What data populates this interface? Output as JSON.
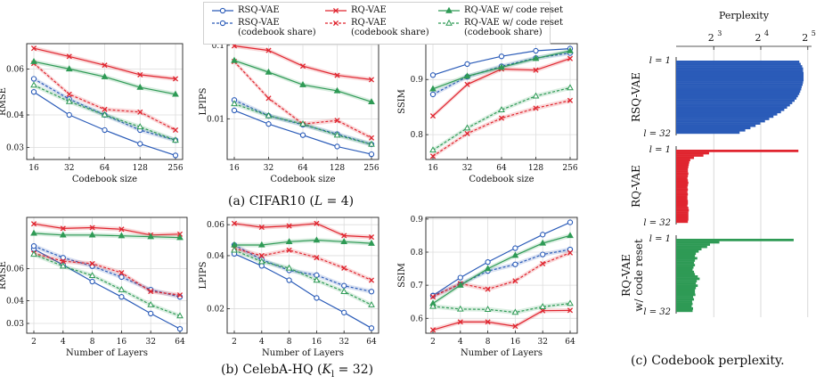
{
  "colors": {
    "rsq": "#2a5bb8",
    "rq": "#e0252f",
    "rqr": "#2e9a55"
  },
  "legend": [
    {
      "key": "rsq",
      "label": "RSQ-VAE",
      "marker": "circle",
      "dashed": false
    },
    {
      "key": "rsq_s",
      "label": "RSQ-VAE\n(codebook share)",
      "marker": "circle",
      "dashed": true
    },
    {
      "key": "rq",
      "label": "RQ-VAE",
      "marker": "x",
      "dashed": false
    },
    {
      "key": "rq_s",
      "label": "RQ-VAE\n(codebook share)",
      "marker": "x",
      "dashed": true
    },
    {
      "key": "rqr",
      "label": "RQ-VAE w/ code reset",
      "marker": "triangle",
      "dashed": false
    },
    {
      "key": "rqr_s",
      "label": "RQ-VAE w/ code reset\n(codebook share)",
      "marker": "triangle",
      "dashed": true
    }
  ],
  "captions": {
    "a": "(a) CIFAR10 (L = 4)",
    "b": "(b) CelebA-HQ (Kl = 32)",
    "c": "(c) Codebook perplexity."
  },
  "chart_data": [
    {
      "id": "cifar-rmse",
      "type": "line",
      "ylabel": "RMSE",
      "xlabel": "Codebook size",
      "x": [
        "16",
        "32",
        "64",
        "128",
        "256"
      ],
      "ylog": true,
      "ylim": [
        0.027,
        0.075
      ],
      "yticks": [
        {
          "v": 0.03,
          "t": "0.03"
        },
        {
          "v": 0.04,
          "t": "0.04"
        },
        {
          "v": 0.06,
          "t": "0.06"
        }
      ],
      "series": [
        {
          "key": "rsq",
          "values": [
            0.049,
            0.04,
            0.035,
            0.031,
            0.028
          ]
        },
        {
          "key": "rsq_s",
          "values": [
            0.055,
            0.046,
            0.04,
            0.035,
            0.032
          ]
        },
        {
          "key": "rq",
          "values": [
            0.072,
            0.067,
            0.062,
            0.057,
            0.055
          ]
        },
        {
          "key": "rq_s",
          "values": [
            0.063,
            0.048,
            0.042,
            0.041,
            0.035
          ]
        },
        {
          "key": "rqr",
          "values": [
            0.064,
            0.06,
            0.056,
            0.051,
            0.048
          ]
        },
        {
          "key": "rqr_s",
          "values": [
            0.052,
            0.045,
            0.04,
            0.036,
            0.032
          ]
        }
      ]
    },
    {
      "id": "cifar-lpips",
      "type": "line",
      "ylabel": "LPIPS",
      "xlabel": "Codebook size",
      "x": [
        "16",
        "32",
        "64",
        "128",
        "256"
      ],
      "ylog": true,
      "ylim": [
        0.0028,
        0.105
      ],
      "yticks": [
        {
          "v": 0.01,
          "t": "0.01"
        },
        {
          "v": 0.1,
          "t": "0.1"
        }
      ],
      "series": [
        {
          "key": "rsq",
          "values": [
            0.013,
            0.0085,
            0.006,
            0.0042,
            0.0033
          ]
        },
        {
          "key": "rsq_s",
          "values": [
            0.018,
            0.011,
            0.0083,
            0.0062,
            0.0045
          ]
        },
        {
          "key": "rq",
          "values": [
            0.098,
            0.085,
            0.052,
            0.039,
            0.034
          ]
        },
        {
          "key": "rq_s",
          "values": [
            0.06,
            0.019,
            0.0085,
            0.0095,
            0.0055
          ]
        },
        {
          "key": "rqr",
          "values": [
            0.062,
            0.043,
            0.029,
            0.024,
            0.017
          ]
        },
        {
          "key": "rqr_s",
          "values": [
            0.016,
            0.011,
            0.0085,
            0.006,
            0.0045
          ]
        }
      ]
    },
    {
      "id": "cifar-ssim",
      "type": "line",
      "ylabel": "SSIM",
      "xlabel": "Codebook size",
      "x": [
        "16",
        "32",
        "64",
        "128",
        "256"
      ],
      "ylog": false,
      "ylim": [
        0.755,
        0.965
      ],
      "yticks": [
        {
          "v": 0.8,
          "t": "0.8"
        },
        {
          "v": 0.9,
          "t": "0.9"
        }
      ],
      "series": [
        {
          "key": "rsq",
          "values": [
            0.908,
            0.928,
            0.942,
            0.952,
            0.956
          ]
        },
        {
          "key": "rsq_s",
          "values": [
            0.873,
            0.905,
            0.924,
            0.939,
            0.948
          ]
        },
        {
          "key": "rq",
          "values": [
            0.834,
            0.891,
            0.919,
            0.917,
            0.938
          ]
        },
        {
          "key": "rq_s",
          "values": [
            0.761,
            0.802,
            0.83,
            0.848,
            0.862
          ]
        },
        {
          "key": "rqr",
          "values": [
            0.883,
            0.906,
            0.922,
            0.938,
            0.952
          ]
        },
        {
          "key": "rqr_s",
          "values": [
            0.772,
            0.812,
            0.845,
            0.87,
            0.885
          ]
        }
      ]
    },
    {
      "id": "celeba-rmse",
      "type": "line",
      "ylabel": "RMSE",
      "xlabel": "Number of Layers",
      "x": [
        "2",
        "4",
        "8",
        "16",
        "32",
        "64"
      ],
      "ylog": true,
      "ylim": [
        0.0265,
        0.115
      ],
      "yticks": [
        {
          "v": 0.03,
          "t": "0.03"
        },
        {
          "v": 0.04,
          "t": "0.04"
        },
        {
          "v": 0.06,
          "t": "0.06"
        }
      ],
      "series": [
        {
          "key": "rsq",
          "values": [
            0.077,
            0.063,
            0.051,
            0.042,
            0.034,
            0.028
          ]
        },
        {
          "key": "rsq_s",
          "values": [
            0.08,
            0.069,
            0.062,
            0.054,
            0.046,
            0.042
          ]
        },
        {
          "key": "rq",
          "values": [
            0.106,
            0.1,
            0.101,
            0.099,
            0.092,
            0.093
          ]
        },
        {
          "key": "rq_s",
          "values": [
            0.073,
            0.066,
            0.064,
            0.057,
            0.045,
            0.043
          ]
        },
        {
          "key": "rqr",
          "values": [
            0.094,
            0.092,
            0.092,
            0.091,
            0.09,
            0.089
          ]
        },
        {
          "key": "rqr_s",
          "values": [
            0.072,
            0.062,
            0.055,
            0.046,
            0.038,
            0.033
          ]
        }
      ]
    },
    {
      "id": "celeba-lpips",
      "type": "line",
      "ylabel": "LPIPS",
      "xlabel": "Number of Layers",
      "x": [
        "2",
        "4",
        "8",
        "16",
        "32",
        "64"
      ],
      "ylog": true,
      "ylim": [
        0.0145,
        0.066
      ],
      "yticks": [
        {
          "v": 0.02,
          "t": "0.02"
        },
        {
          "v": 0.04,
          "t": "0.04"
        },
        {
          "v": 0.06,
          "t": "0.06"
        }
      ],
      "series": [
        {
          "key": "rsq",
          "values": [
            0.041,
            0.035,
            0.029,
            0.023,
            0.019,
            0.0155
          ]
        },
        {
          "key": "rsq_s",
          "values": [
            0.046,
            0.038,
            0.033,
            0.031,
            0.027,
            0.025
          ]
        },
        {
          "key": "rq",
          "values": [
            0.061,
            0.058,
            0.059,
            0.061,
            0.052,
            0.051
          ]
        },
        {
          "key": "rq_s",
          "values": [
            0.044,
            0.04,
            0.043,
            0.039,
            0.034,
            0.029
          ]
        },
        {
          "key": "rqr",
          "values": [
            0.046,
            0.046,
            0.048,
            0.049,
            0.048,
            0.047
          ]
        },
        {
          "key": "rqr_s",
          "values": [
            0.043,
            0.037,
            0.034,
            0.029,
            0.025,
            0.021
          ]
        }
      ]
    },
    {
      "id": "celeba-ssim",
      "type": "line",
      "ylabel": "SSIM",
      "xlabel": "Number of Layers",
      "x": [
        "2",
        "4",
        "8",
        "16",
        "32",
        "64"
      ],
      "ylog": false,
      "ylim": [
        0.555,
        0.905
      ],
      "yticks": [
        {
          "v": 0.6,
          "t": "0.6"
        },
        {
          "v": 0.7,
          "t": "0.7"
        },
        {
          "v": 0.8,
          "t": "0.8"
        },
        {
          "v": 0.9,
          "t": "0.9"
        }
      ],
      "series": [
        {
          "key": "rsq",
          "values": [
            0.669,
            0.723,
            0.77,
            0.812,
            0.853,
            0.89
          ]
        },
        {
          "key": "rsq_s",
          "values": [
            0.668,
            0.703,
            0.743,
            0.763,
            0.793,
            0.808
          ]
        },
        {
          "key": "rq",
          "values": [
            0.565,
            0.589,
            0.589,
            0.576,
            0.623,
            0.624
          ]
        },
        {
          "key": "rq_s",
          "values": [
            0.665,
            0.705,
            0.688,
            0.713,
            0.765,
            0.798
          ]
        },
        {
          "key": "rqr",
          "values": [
            0.645,
            0.7,
            0.75,
            0.79,
            0.827,
            0.85
          ]
        },
        {
          "key": "rqr_s",
          "values": [
            0.636,
            0.628,
            0.627,
            0.618,
            0.635,
            0.645
          ]
        }
      ]
    },
    {
      "id": "perplexity",
      "type": "bar",
      "orientation": "horizontal",
      "title": "Perplexity",
      "xlog": "base2",
      "xticks": [
        {
          "v": 3,
          "t": "2",
          "e": "3"
        },
        {
          "v": 4,
          "t": "2",
          "e": "4"
        },
        {
          "v": 5,
          "t": "2",
          "e": "5"
        }
      ],
      "xlim": [
        2.2,
        5.08
      ],
      "panels": [
        {
          "key": "rsq",
          "ylabel": "RSQ-VAE",
          "top": "l = 1",
          "bottom": "l = 32",
          "log2_values": [
            4.82,
            4.85,
            4.88,
            4.9,
            4.9,
            4.91,
            4.91,
            4.91,
            4.91,
            4.9,
            4.89,
            4.87,
            4.86,
            4.84,
            4.82,
            4.79,
            4.76,
            4.72,
            4.67,
            4.62,
            4.56,
            4.5,
            4.43,
            4.35,
            4.27,
            4.18,
            4.09,
            3.99,
            3.89,
            3.78,
            3.67,
            3.55
          ]
        },
        {
          "key": "rq",
          "ylabel": "RQ-VAE",
          "top": "l = 1",
          "bottom": "l = 32",
          "log2_values": [
            4.8,
            2.9,
            2.78,
            2.58,
            2.5,
            2.48,
            2.47,
            2.46,
            2.45,
            2.45,
            2.46,
            2.45,
            2.44,
            2.45,
            2.46,
            2.45,
            2.44,
            2.45,
            2.44,
            2.45,
            2.44,
            2.44,
            2.45,
            2.45,
            2.44,
            2.46,
            2.47,
            2.46,
            2.46,
            2.46,
            2.46,
            2.45
          ]
        },
        {
          "key": "rqr",
          "ylabel": "RQ-VAE\nw/ code reset",
          "top": "l = 1",
          "bottom": "l = 32",
          "log2_values": [
            4.7,
            3.12,
            2.92,
            2.86,
            2.74,
            2.68,
            2.62,
            2.6,
            2.65,
            2.6,
            2.58,
            2.6,
            2.57,
            2.55,
            2.58,
            2.6,
            2.66,
            2.7,
            2.64,
            2.62,
            2.66,
            2.62,
            2.6,
            2.6,
            2.61,
            2.56,
            2.58,
            2.54,
            2.55,
            2.53,
            2.56,
            2.55
          ]
        }
      ]
    }
  ]
}
